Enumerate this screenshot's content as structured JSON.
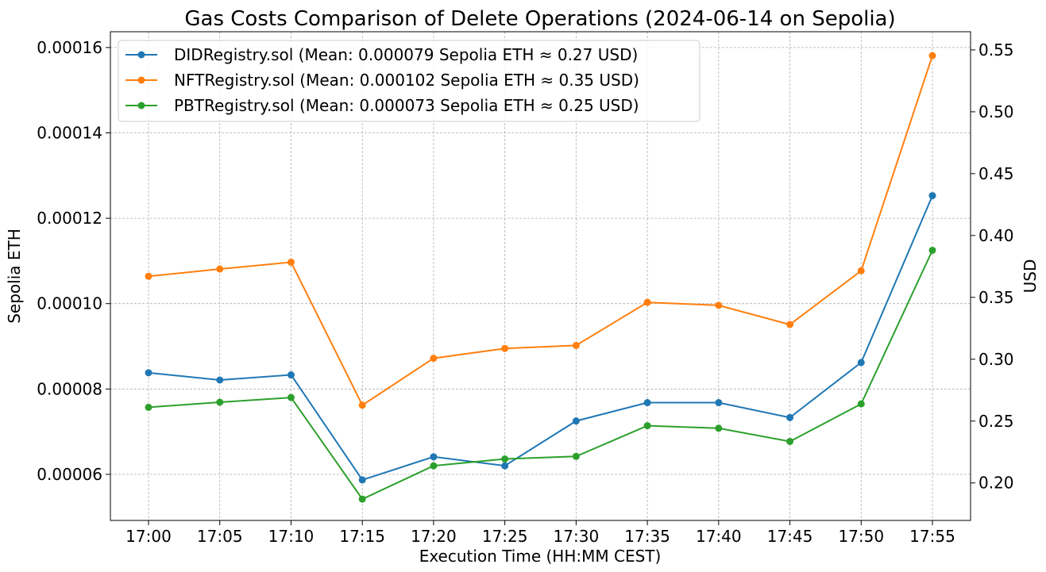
{
  "chart_data": {
    "type": "line",
    "title": "Gas Costs Comparison of Delete Operations (2024-06-14 on Sepolia)",
    "xlabel": "Execution Time (HH:MM CEST)",
    "ylabel": "Sepolia ETH",
    "y2label": "USD",
    "categories": [
      "17:00",
      "17:05",
      "17:10",
      "17:15",
      "17:20",
      "17:25",
      "17:30",
      "17:35",
      "17:40",
      "17:45",
      "17:50",
      "17:55"
    ],
    "ylim": [
      4.92e-05,
      0.0001637
    ],
    "y2lim": [
      0.1697,
      0.5647
    ],
    "yticks": [
      "0.00006",
      "0.00008",
      "0.00010",
      "0.00012",
      "0.00014",
      "0.00016"
    ],
    "y2ticks": [
      "0.20",
      "0.25",
      "0.30",
      "0.35",
      "0.40",
      "0.45",
      "0.50",
      "0.55"
    ],
    "grid": true,
    "legend_position": "upper-left",
    "series": [
      {
        "name": "DIDRegistry.sol (Mean: 0.000079 Sepolia ETH ≈ 0.27 USD)",
        "color": "#1f77b4",
        "values": [
          8.38e-05,
          8.21e-05,
          8.33e-05,
          5.87e-05,
          6.41e-05,
          6.2e-05,
          7.25e-05,
          7.68e-05,
          7.68e-05,
          7.33e-05,
          8.62e-05,
          0.0001253
        ]
      },
      {
        "name": "NFTRegistry.sol (Mean: 0.000102 Sepolia ETH ≈ 0.35 USD)",
        "color": "#ff7f0e",
        "values": [
          0.0001064,
          0.0001081,
          0.0001097,
          7.62e-05,
          8.72e-05,
          8.95e-05,
          9.02e-05,
          0.0001003,
          9.96e-05,
          9.51e-05,
          0.0001077,
          0.0001581
        ]
      },
      {
        "name": "PBTRegistry.sol (Mean: 0.000073 Sepolia ETH ≈ 0.25 USD)",
        "color": "#2ca02c",
        "values": [
          7.57e-05,
          7.69e-05,
          7.8e-05,
          5.42e-05,
          6.2e-05,
          6.36e-05,
          6.42e-05,
          7.14e-05,
          7.08e-05,
          6.77e-05,
          7.65e-05,
          0.0001125
        ]
      }
    ]
  }
}
